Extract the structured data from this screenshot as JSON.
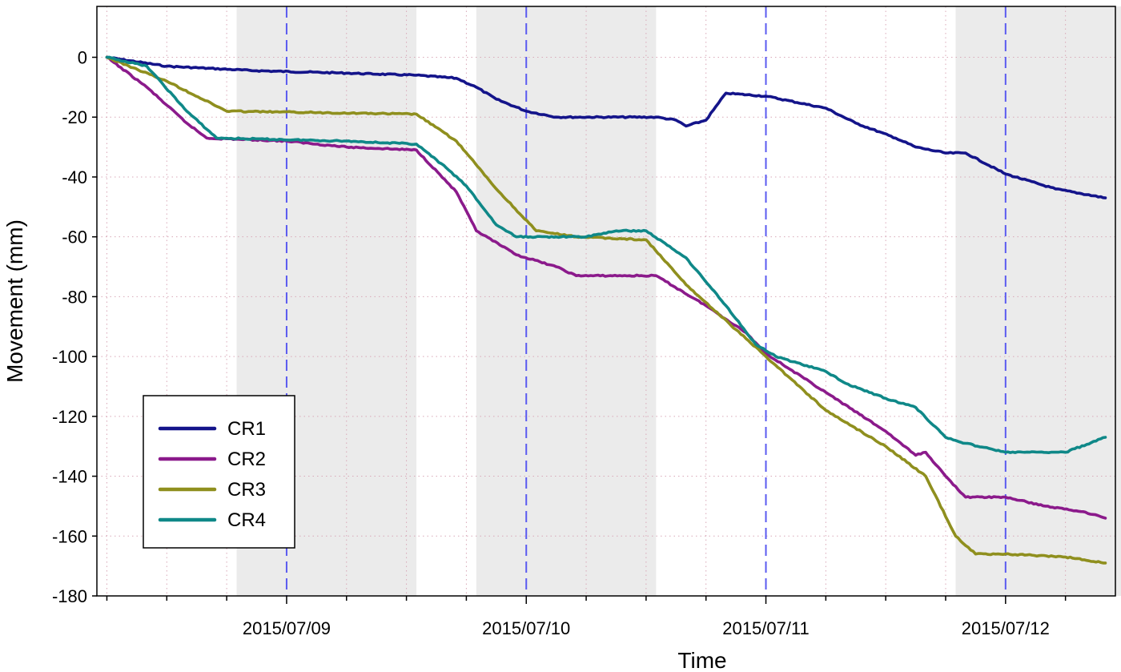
{
  "chart_data": {
    "type": "line",
    "title": "",
    "xlabel": "Time",
    "ylabel": "Movement (mm)",
    "xlim": [
      "2015-07-08T05:00",
      "2015-07-12T11:00"
    ],
    "ylim": [
      -180,
      17
    ],
    "x_ticks": [
      {
        "t": "2015-07-09T00:00",
        "label": "2015/07/09"
      },
      {
        "t": "2015-07-10T00:00",
        "label": "2015/07/10"
      },
      {
        "t": "2015-07-11T00:00",
        "label": "2015/07/11"
      },
      {
        "t": "2015-07-12T00:00",
        "label": "2015/07/12"
      }
    ],
    "y_ticks": [
      0,
      -20,
      -40,
      -60,
      -80,
      -100,
      -120,
      -140,
      -160,
      -180
    ],
    "y_tick_labels": [
      "0",
      "-20",
      "-40",
      "-60",
      "-80",
      "-100",
      "-120",
      "-140",
      "-160",
      "-180"
    ],
    "shaded_periods": [
      {
        "start": "2015-07-08T19:00",
        "end": "2015-07-09T13:00"
      },
      {
        "start": "2015-07-09T19:00",
        "end": "2015-07-10T13:00"
      },
      {
        "start": "2015-07-11T19:00",
        "end": "2015-07-12T13:00"
      }
    ],
    "grid": true,
    "legend": "bottom-left",
    "series": [
      {
        "name": "CR1",
        "color": "#14148a",
        "points": [
          [
            "2015-07-08T06:00",
            0
          ],
          [
            "2015-07-08T12:00",
            -3
          ],
          [
            "2015-07-08T21:00",
            -4.5
          ],
          [
            "2015-07-09T06:00",
            -5.3
          ],
          [
            "2015-07-09T13:00",
            -6
          ],
          [
            "2015-07-09T17:00",
            -7
          ],
          [
            "2015-07-09T19:00",
            -10
          ],
          [
            "2015-07-09T21:00",
            -14
          ],
          [
            "2015-07-10T00:00",
            -18
          ],
          [
            "2015-07-10T03:00",
            -20
          ],
          [
            "2015-07-10T13:00",
            -20
          ],
          [
            "2015-07-10T15:00",
            -21
          ],
          [
            "2015-07-10T16:00",
            -23
          ],
          [
            "2015-07-10T18:00",
            -21
          ],
          [
            "2015-07-10T20:00",
            -12
          ],
          [
            "2015-07-11T00:00",
            -13
          ],
          [
            "2015-07-11T06:00",
            -17
          ],
          [
            "2015-07-11T09:00",
            -22
          ],
          [
            "2015-07-11T13:00",
            -27
          ],
          [
            "2015-07-11T15:00",
            -30
          ],
          [
            "2015-07-11T18:00",
            -32
          ],
          [
            "2015-07-11T20:00",
            -32
          ],
          [
            "2015-07-12T00:00",
            -39
          ],
          [
            "2015-07-12T05:00",
            -44
          ],
          [
            "2015-07-12T10:00",
            -47
          ]
        ]
      },
      {
        "name": "CR2",
        "color": "#8b1a8b",
        "points": [
          [
            "2015-07-08T06:00",
            0
          ],
          [
            "2015-07-08T10:00",
            -10
          ],
          [
            "2015-07-08T14:00",
            -22
          ],
          [
            "2015-07-08T16:00",
            -27
          ],
          [
            "2015-07-09T00:00",
            -28
          ],
          [
            "2015-07-09T06:00",
            -30
          ],
          [
            "2015-07-09T13:00",
            -31
          ],
          [
            "2015-07-09T17:00",
            -45
          ],
          [
            "2015-07-09T19:00",
            -58
          ],
          [
            "2015-07-09T23:00",
            -66
          ],
          [
            "2015-07-10T03:00",
            -70
          ],
          [
            "2015-07-10T05:00",
            -73
          ],
          [
            "2015-07-10T13:00",
            -73
          ],
          [
            "2015-07-10T18:00",
            -83
          ],
          [
            "2015-07-10T22:00",
            -92
          ],
          [
            "2015-07-11T00:00",
            -99
          ],
          [
            "2015-07-11T06:00",
            -112
          ],
          [
            "2015-07-11T12:00",
            -125
          ],
          [
            "2015-07-11T15:00",
            -133
          ],
          [
            "2015-07-11T16:00",
            -132
          ],
          [
            "2015-07-11T18:00",
            -140
          ],
          [
            "2015-07-11T20:00",
            -147
          ],
          [
            "2015-07-12T00:00",
            -147
          ],
          [
            "2015-07-12T04:00",
            -150
          ],
          [
            "2015-07-12T08:00",
            -152
          ],
          [
            "2015-07-12T10:00",
            -154
          ]
        ]
      },
      {
        "name": "CR3",
        "color": "#8f8f1e",
        "points": [
          [
            "2015-07-08T06:00",
            0
          ],
          [
            "2015-07-08T12:00",
            -8
          ],
          [
            "2015-07-08T18:00",
            -18
          ],
          [
            "2015-07-09T13:00",
            -19
          ],
          [
            "2015-07-09T17:00",
            -28
          ],
          [
            "2015-07-09T21:00",
            -44
          ],
          [
            "2015-07-10T01:00",
            -58
          ],
          [
            "2015-07-10T05:00",
            -60
          ],
          [
            "2015-07-10T12:00",
            -61
          ],
          [
            "2015-07-10T16:00",
            -76
          ],
          [
            "2015-07-10T21:00",
            -91
          ],
          [
            "2015-07-11T00:00",
            -100
          ],
          [
            "2015-07-11T06:00",
            -118
          ],
          [
            "2015-07-11T12:00",
            -130
          ],
          [
            "2015-07-11T16:00",
            -140
          ],
          [
            "2015-07-11T19:00",
            -160
          ],
          [
            "2015-07-11T21:00",
            -166
          ],
          [
            "2015-07-12T00:00",
            -166
          ],
          [
            "2015-07-12T06:00",
            -167
          ],
          [
            "2015-07-12T10:00",
            -169
          ]
        ]
      },
      {
        "name": "CR4",
        "color": "#0f8888",
        "points": [
          [
            "2015-07-08T06:00",
            0
          ],
          [
            "2015-07-08T10:00",
            -3
          ],
          [
            "2015-07-08T14:00",
            -18
          ],
          [
            "2015-07-08T17:00",
            -27
          ],
          [
            "2015-07-09T06:00",
            -28
          ],
          [
            "2015-07-09T13:00",
            -29
          ],
          [
            "2015-07-09T16:00",
            -37
          ],
          [
            "2015-07-09T18:00",
            -43
          ],
          [
            "2015-07-09T21:00",
            -56
          ],
          [
            "2015-07-09T23:00",
            -60
          ],
          [
            "2015-07-10T03:00",
            -60
          ],
          [
            "2015-07-10T06:00",
            -60
          ],
          [
            "2015-07-10T09:00",
            -58
          ],
          [
            "2015-07-10T12:00",
            -58
          ],
          [
            "2015-07-10T16:00",
            -67
          ],
          [
            "2015-07-10T20:00",
            -83
          ],
          [
            "2015-07-10T23:00",
            -96
          ],
          [
            "2015-07-11T01:00",
            -100
          ],
          [
            "2015-07-11T06:00",
            -105
          ],
          [
            "2015-07-11T08:00",
            -109
          ],
          [
            "2015-07-11T12:00",
            -114
          ],
          [
            "2015-07-11T15:00",
            -117
          ],
          [
            "2015-07-11T18:00",
            -127
          ],
          [
            "2015-07-11T20:00",
            -129
          ],
          [
            "2015-07-12T00:00",
            -132
          ],
          [
            "2015-07-12T06:00",
            -132
          ],
          [
            "2015-07-12T10:00",
            -127
          ]
        ]
      }
    ]
  }
}
